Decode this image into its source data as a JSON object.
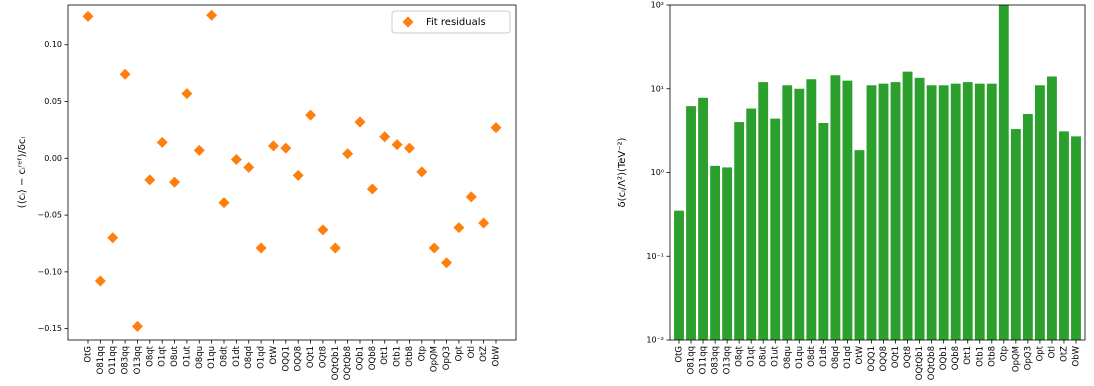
{
  "chart_data": [
    {
      "type": "scatter",
      "categories": [
        "OtG",
        "O81qq",
        "O11qq",
        "O83qq",
        "O13qq",
        "O8qt",
        "O1qt",
        "O8ut",
        "O1ut",
        "O8qu",
        "O1qu",
        "O8dt",
        "O1dt",
        "O8qd",
        "O1qd",
        "OtW",
        "OQQ1",
        "OQQ8",
        "OQt1",
        "OQt8",
        "OQtQb1",
        "OQtQb8",
        "OQb1",
        "OQb8",
        "Ott1",
        "Otb1",
        "Otb8",
        "Otp",
        "OpQM",
        "OpQ3",
        "Opt",
        "Otl",
        "OtZ",
        "ObW"
      ],
      "series": [
        {
          "name": "Fit residuals",
          "color": "#ff7f0e",
          "values": [
            0.125,
            -0.108,
            -0.07,
            0.074,
            -0.148,
            -0.019,
            0.014,
            -0.021,
            0.057,
            0.007,
            0.126,
            -0.039,
            -0.001,
            -0.008,
            -0.079,
            0.011,
            0.009,
            -0.015,
            0.038,
            -0.063,
            -0.079,
            0.004,
            0.032,
            -0.027,
            0.019,
            0.012,
            0.009,
            -0.012,
            -0.079,
            -0.092,
            -0.061,
            -0.034,
            -0.057,
            0.027
          ]
        }
      ],
      "y_label": "(⟨cᵢ⟩ − cᵢʳᵉᶠ)/δcᵢ",
      "ylim": [
        -0.16,
        0.135
      ],
      "yticks": [
        {
          "value": -0.15,
          "label": "−0.15"
        },
        {
          "value": -0.1,
          "label": "−0.10"
        },
        {
          "value": -0.05,
          "label": "−0.05"
        },
        {
          "value": 0,
          "label": "0.00"
        },
        {
          "value": 0.05,
          "label": "0.05"
        },
        {
          "value": 0.1,
          "label": "0.10"
        }
      ],
      "legend": "upper right"
    },
    {
      "type": "bar",
      "categories": [
        "OtG",
        "O81qq",
        "O11qq",
        "O83qq",
        "O13qq",
        "O8qt",
        "O1qt",
        "O8ut",
        "O1ut",
        "O8qu",
        "O1qu",
        "O8dt",
        "O1dt",
        "O8qd",
        "O1qd",
        "OtW",
        "OQQ1",
        "OQQ8",
        "OQt1",
        "OQt8",
        "OQtQb1",
        "OQtQb8",
        "OQb1",
        "OQb8",
        "Ott1",
        "Otb1",
        "Otb8",
        "Otp",
        "OpQM",
        "OpQ3",
        "Opt",
        "Otl",
        "OtZ",
        "ObW"
      ],
      "values": [
        0.35,
        6.2,
        7.8,
        1.2,
        1.15,
        4.0,
        5.8,
        12,
        4.4,
        11,
        10,
        13,
        3.9,
        14.5,
        12.5,
        1.85,
        11,
        11.5,
        12,
        16,
        13.5,
        11,
        11,
        11.5,
        12,
        11.5,
        11.5,
        100,
        3.3,
        5,
        11,
        14,
        3.1,
        2.7
      ],
      "color": "#2ca02c",
      "y_label": "δ(cᵢ/Λ²)(TeV⁻²)",
      "log_scale": true,
      "ylim": [
        0.01,
        100
      ],
      "yticks": [
        {
          "value": 0.01,
          "label": "10⁻²"
        },
        {
          "value": 0.1,
          "label": "10⁻¹"
        },
        {
          "value": 1,
          "label": "10⁰"
        },
        {
          "value": 10,
          "label": "10¹"
        },
        {
          "value": 100,
          "label": "10²"
        }
      ]
    }
  ]
}
